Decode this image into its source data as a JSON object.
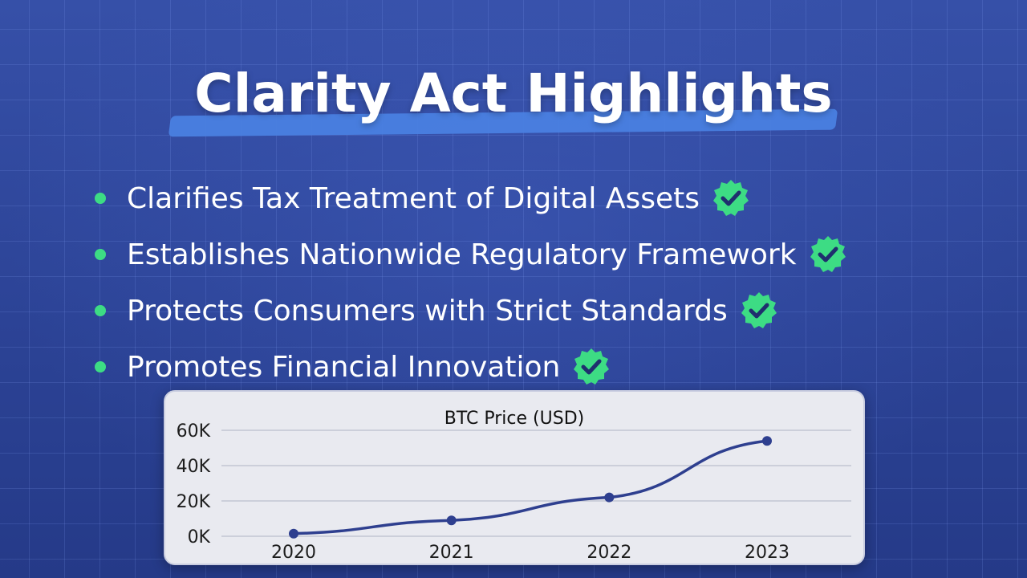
{
  "slide": {
    "title": "Clarity Act Highlights",
    "bullets": [
      "Clarifies Tax Treatment of Digital Assets",
      "Establishes Nationwide Regulatory Framework",
      "Protects Consumers with Strict Standards",
      "Promotes Financial Innovation"
    ],
    "bullet_icon": "check-badge-icon",
    "colors": {
      "background": "#2d4496",
      "title_underline": "#4a7fe0",
      "bullet_accent": "#3ddc84",
      "chart_line": "#2e3f8f"
    }
  },
  "chart_data": {
    "type": "line",
    "title": "BTC Price (USD)",
    "categories": [
      "2020",
      "2021",
      "2022",
      "2023"
    ],
    "series": [
      {
        "values": [
          1500,
          9000,
          22000,
          54000
        ]
      }
    ],
    "ylim": [
      0,
      60000
    ],
    "yticks": [
      {
        "value": 0,
        "label": "0K"
      },
      {
        "value": 20000,
        "label": "20K"
      },
      {
        "value": 40000,
        "label": "40K"
      },
      {
        "value": 60000,
        "label": "60K"
      }
    ],
    "grid": true,
    "legend": "none"
  }
}
